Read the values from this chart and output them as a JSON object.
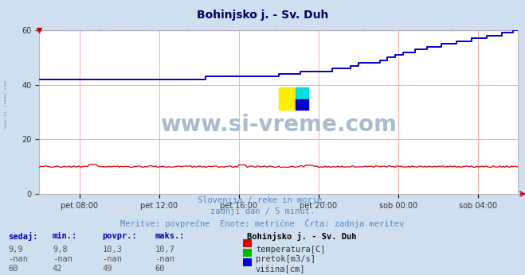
{
  "title": "Bohinjsko j. - Sv. Duh",
  "bg_color": "#d0dff0",
  "plot_bg_color": "#ffffff",
  "grid_color": "#ffaaaa",
  "ylim": [
    0,
    60
  ],
  "yticks": [
    0,
    20,
    40,
    60
  ],
  "xlabel_ticks": [
    "pet 08:00",
    "pet 12:00",
    "pet 16:00",
    "pet 20:00",
    "sob 00:00",
    "sob 04:00"
  ],
  "watermark_text": "www.si-vreme.com",
  "subtitle1": "Slovenija / reke in morje.",
  "subtitle2": "zadnji dan / 5 minut.",
  "subtitle3": "Meritve: povprečne  Enote: metrične  Črta: zadnja meritev",
  "legend_title": "Bohinjsko j. - Sv. Duh",
  "legend_items": [
    {
      "label": "temperatura[C]",
      "color": "#dd0000"
    },
    {
      "label": "pretok[m3/s]",
      "color": "#00bb00"
    },
    {
      "label": "višina[cm]",
      "color": "#0000cc"
    }
  ],
  "table_headers": [
    "sedaj:",
    "min.:",
    "povpr.:",
    "maks.:"
  ],
  "table_rows": [
    [
      "9,9",
      "9,8",
      "10,3",
      "10,7"
    ],
    [
      "-nan",
      "-nan",
      "-nan",
      "-nan"
    ],
    [
      "60",
      "42",
      "49",
      "60"
    ]
  ],
  "temp_color": "#dd0000",
  "height_color": "#0000cc",
  "dashed_line_color": "#aaaaff",
  "title_color": "#000066",
  "subtitle_color": "#5588bb",
  "table_header_color": "#0000bb",
  "sidebar_color": "#8899bb",
  "watermark_color": "#aabbd0"
}
